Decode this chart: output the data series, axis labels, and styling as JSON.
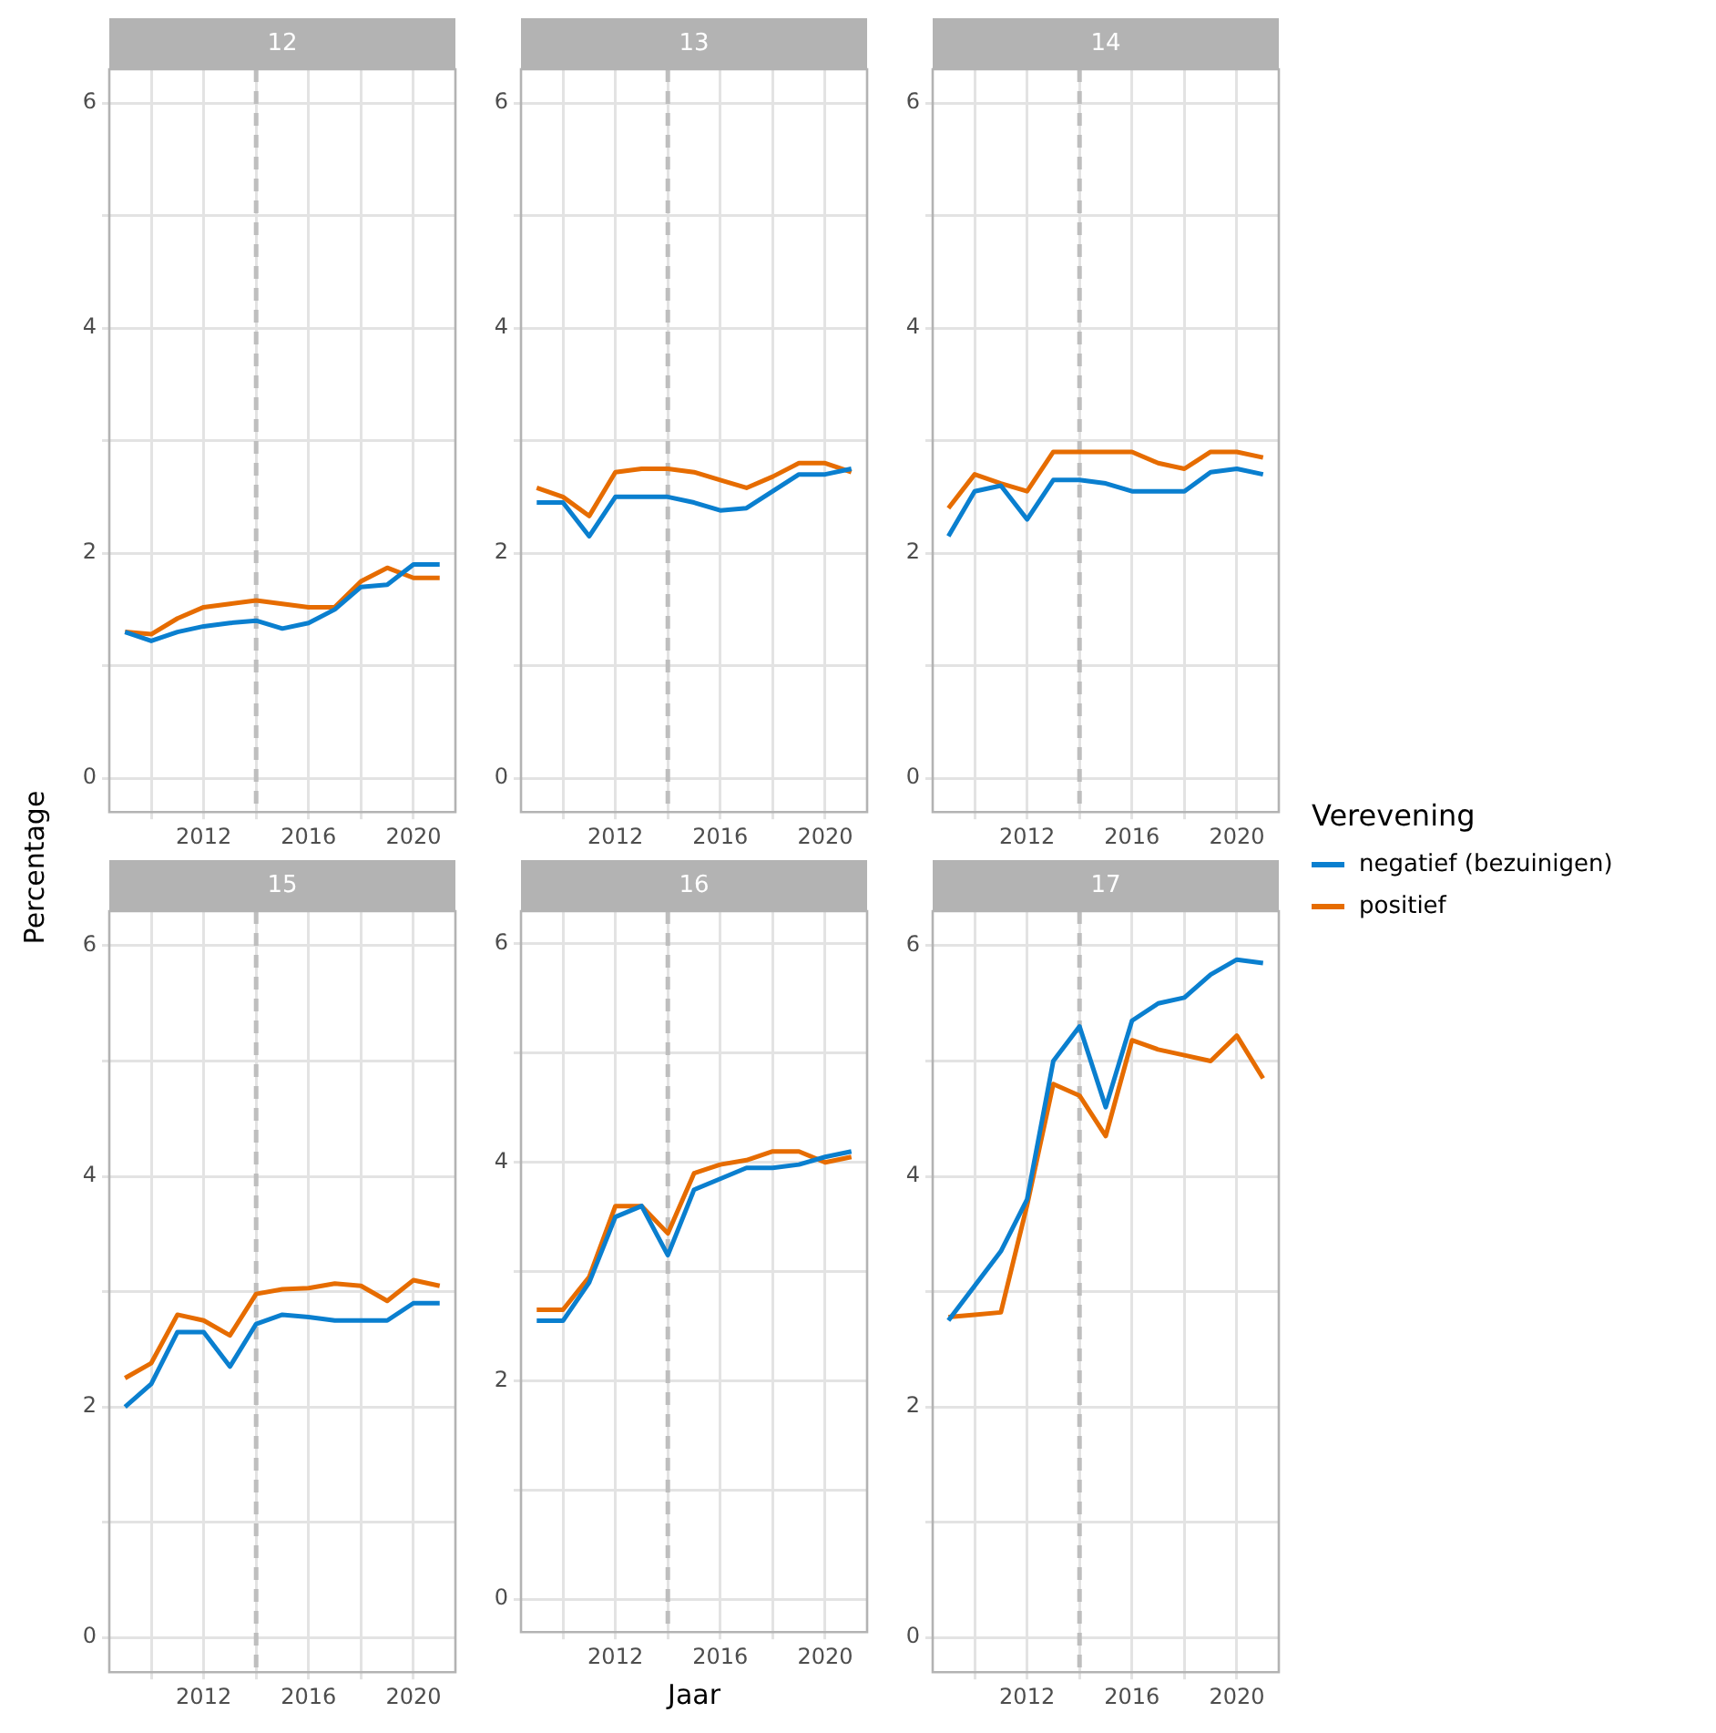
{
  "chart_data": [
    {
      "type": "line",
      "title": "12",
      "ylabel": "Percentage",
      "x": [
        2009,
        2010,
        2011,
        2012,
        2013,
        2014,
        2015,
        2016,
        2017,
        2018,
        2019,
        2020,
        2021
      ],
      "xlim": [
        2008.4,
        2021.6
      ],
      "xticks": [
        {
          "value": 2010,
          "label": null
        },
        2012,
        {
          "value": 2014,
          "label": null
        },
        2016,
        {
          "value": 2018,
          "label": null
        },
        2020
      ],
      "ylim": [
        -0.3,
        6.3
      ],
      "yticks": [
        0,
        {
          "value": 1,
          "label": null
        },
        2,
        {
          "value": 3,
          "label": null
        },
        4,
        {
          "value": 5,
          "label": null
        },
        6
      ],
      "grid": true,
      "ref_lines": [
        {
          "axis": "x",
          "value": 2014,
          "color": "#bebebe",
          "line_style": "dashed"
        }
      ],
      "series": [
        {
          "color": "#0a7fcf",
          "values": [
            1.3,
            1.22,
            1.3,
            1.35,
            1.38,
            1.4,
            1.33,
            1.38,
            1.5,
            1.7,
            1.72,
            1.9,
            1.9
          ]
        },
        {
          "color": "#e66c00",
          "values": [
            1.3,
            1.28,
            1.42,
            1.52,
            1.55,
            1.58,
            1.55,
            1.52,
            1.52,
            1.75,
            1.87,
            1.78,
            1.78
          ]
        }
      ]
    },
    {
      "type": "line",
      "title": "13",
      "x": [
        2009,
        2010,
        2011,
        2012,
        2013,
        2014,
        2015,
        2016,
        2017,
        2018,
        2019,
        2020,
        2021
      ],
      "xlim": [
        2008.4,
        2021.6
      ],
      "xticks": [
        {
          "value": 2010,
          "label": null
        },
        2012,
        {
          "value": 2014,
          "label": null
        },
        2016,
        {
          "value": 2018,
          "label": null
        },
        2020
      ],
      "ylim": [
        -0.3,
        6.3
      ],
      "yticks": [
        0,
        {
          "value": 1,
          "label": null
        },
        2,
        {
          "value": 3,
          "label": null
        },
        4,
        {
          "value": 5,
          "label": null
        },
        6
      ],
      "grid": true,
      "ref_lines": [
        {
          "axis": "x",
          "value": 2014,
          "color": "#bebebe",
          "line_style": "dashed"
        }
      ],
      "series": [
        {
          "color": "#0a7fcf",
          "values": [
            2.45,
            2.45,
            2.15,
            2.5,
            2.5,
            2.5,
            2.45,
            2.38,
            2.4,
            2.55,
            2.7,
            2.7,
            2.75
          ]
        },
        {
          "color": "#e66c00",
          "values": [
            2.58,
            2.5,
            2.33,
            2.72,
            2.75,
            2.75,
            2.72,
            2.65,
            2.58,
            2.68,
            2.8,
            2.8,
            2.72
          ]
        }
      ]
    },
    {
      "type": "line",
      "title": "14",
      "legend": "right",
      "legend_title": "Verevening",
      "x": [
        2009,
        2010,
        2011,
        2012,
        2013,
        2014,
        2015,
        2016,
        2017,
        2018,
        2019,
        2020,
        2021
      ],
      "xlim": [
        2008.4,
        2021.6
      ],
      "xticks": [
        {
          "value": 2010,
          "label": null
        },
        2012,
        {
          "value": 2014,
          "label": null
        },
        2016,
        {
          "value": 2018,
          "label": null
        },
        2020
      ],
      "ylim": [
        -0.3,
        6.3
      ],
      "yticks": [
        0,
        {
          "value": 1,
          "label": null
        },
        2,
        {
          "value": 3,
          "label": null
        },
        4,
        {
          "value": 5,
          "label": null
        },
        6
      ],
      "grid": true,
      "ref_lines": [
        {
          "axis": "x",
          "value": 2014,
          "color": "#bebebe",
          "line_style": "dashed"
        }
      ],
      "series": [
        {
          "name": "negatief (bezuinigen)",
          "color": "#0a7fcf",
          "values": [
            2.15,
            2.55,
            2.6,
            2.3,
            2.65,
            2.65,
            2.62,
            2.55,
            2.55,
            2.55,
            2.72,
            2.75,
            2.7
          ]
        },
        {
          "name": "positief",
          "color": "#e66c00",
          "values": [
            2.4,
            2.7,
            2.62,
            2.55,
            2.9,
            2.9,
            2.9,
            2.9,
            2.8,
            2.75,
            2.9,
            2.9,
            2.85
          ]
        }
      ]
    },
    {
      "type": "line",
      "title": "15",
      "x": [
        2009,
        2010,
        2011,
        2012,
        2013,
        2014,
        2015,
        2016,
        2017,
        2018,
        2019,
        2020,
        2021
      ],
      "xlim": [
        2008.4,
        2021.6
      ],
      "xticks": [
        {
          "value": 2010,
          "label": null
        },
        2012,
        {
          "value": 2014,
          "label": null
        },
        2016,
        {
          "value": 2018,
          "label": null
        },
        2020
      ],
      "ylim": [
        -0.3,
        6.3
      ],
      "yticks": [
        0,
        {
          "value": 1,
          "label": null
        },
        2,
        {
          "value": 3,
          "label": null
        },
        4,
        {
          "value": 5,
          "label": null
        },
        6
      ],
      "grid": true,
      "ref_lines": [
        {
          "axis": "x",
          "value": 2014,
          "color": "#bebebe",
          "line_style": "dashed"
        }
      ],
      "series": [
        {
          "color": "#0a7fcf",
          "values": [
            2.0,
            2.2,
            2.65,
            2.65,
            2.35,
            2.72,
            2.8,
            2.78,
            2.75,
            2.75,
            2.75,
            2.9,
            2.9
          ]
        },
        {
          "color": "#e66c00",
          "values": [
            2.25,
            2.38,
            2.8,
            2.75,
            2.62,
            2.98,
            3.02,
            3.03,
            3.07,
            3.05,
            2.92,
            3.1,
            3.05
          ]
        }
      ]
    },
    {
      "type": "line",
      "title": "16",
      "xlabel": "Jaar",
      "x": [
        2009,
        2010,
        2011,
        2012,
        2013,
        2014,
        2015,
        2016,
        2017,
        2018,
        2019,
        2020,
        2021
      ],
      "xlim": [
        2008.4,
        2021.6
      ],
      "xticks": [
        {
          "value": 2010,
          "label": null
        },
        2012,
        {
          "value": 2014,
          "label": null
        },
        2016,
        {
          "value": 2018,
          "label": null
        },
        2020
      ],
      "ylim": [
        -0.3,
        6.3
      ],
      "yticks": [
        0,
        {
          "value": 1,
          "label": null
        },
        2,
        {
          "value": 3,
          "label": null
        },
        4,
        {
          "value": 5,
          "label": null
        },
        6
      ],
      "grid": true,
      "ref_lines": [
        {
          "axis": "x",
          "value": 2014,
          "color": "#bebebe",
          "line_style": "dashed"
        }
      ],
      "series": [
        {
          "color": "#0a7fcf",
          "values": [
            2.55,
            2.55,
            2.9,
            3.5,
            3.6,
            3.15,
            3.75,
            3.85,
            3.95,
            3.95,
            3.98,
            4.05,
            4.1
          ]
        },
        {
          "color": "#e66c00",
          "values": [
            2.65,
            2.65,
            2.95,
            3.6,
            3.6,
            3.35,
            3.9,
            3.98,
            4.02,
            4.1,
            4.1,
            4.0,
            4.05
          ]
        }
      ]
    },
    {
      "type": "line",
      "title": "17",
      "x": [
        2009,
        2010,
        2011,
        2012,
        2013,
        2014,
        2015,
        2016,
        2017,
        2018,
        2019,
        2020,
        2021
      ],
      "xlim": [
        2008.4,
        2021.6
      ],
      "xticks": [
        {
          "value": 2010,
          "label": null
        },
        2012,
        {
          "value": 2014,
          "label": null
        },
        2016,
        {
          "value": 2018,
          "label": null
        },
        2020
      ],
      "ylim": [
        -0.3,
        6.3
      ],
      "yticks": [
        0,
        {
          "value": 1,
          "label": null
        },
        2,
        {
          "value": 3,
          "label": null
        },
        4,
        {
          "value": 5,
          "label": null
        },
        6
      ],
      "grid": true,
      "ref_lines": [
        {
          "axis": "x",
          "value": 2014,
          "color": "#bebebe",
          "line_style": "dashed"
        }
      ],
      "series": [
        {
          "color": "#0a7fcf",
          "values": [
            2.75,
            3.05,
            3.35,
            3.8,
            5.0,
            5.3,
            4.6,
            5.35,
            5.5,
            5.55,
            5.75,
            5.88,
            5.85
          ]
        },
        {
          "color": "#e66c00",
          "values": [
            2.78,
            2.8,
            2.82,
            3.75,
            4.8,
            4.7,
            4.35,
            5.18,
            5.1,
            5.05,
            5.0,
            5.22,
            4.85
          ]
        }
      ]
    }
  ]
}
